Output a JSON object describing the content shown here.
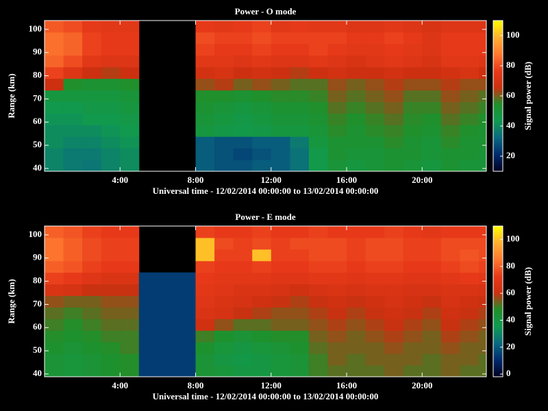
{
  "chart_data": [
    {
      "type": "heatmap",
      "title": "Power - O mode",
      "xlabel": "Universal time - 12/02/2014 00:00:00 to 13/02/2014 00:00:00",
      "ylabel": "Range (km)",
      "colorbar_label": "Signal power (dB)",
      "xlim": [
        0,
        23.4
      ],
      "xticks": [
        {
          "value": 4,
          "label": "4:00"
        },
        {
          "value": 8,
          "label": "8:00"
        },
        {
          "value": 12,
          "label": "12:00"
        },
        {
          "value": 16,
          "label": "16:00"
        },
        {
          "value": 20,
          "label": "20:00"
        }
      ],
      "ylim": [
        38.8,
        103.8
      ],
      "yticks": [
        40,
        50,
        60,
        70,
        80,
        90,
        100
      ],
      "clim": [
        10,
        110
      ],
      "cticks": [
        20,
        40,
        60,
        80,
        100
      ],
      "colormap": [
        "#000020",
        "#002a6e",
        "#0a6a80",
        "#109a50",
        "#20902a",
        "#cc3010",
        "#e83a1a",
        "#ff7a30",
        "#ffb030",
        "#ffff00"
      ],
      "xbins": [
        0,
        1,
        2,
        3,
        4,
        5,
        6,
        7,
        8,
        9,
        10,
        11,
        12,
        13,
        14,
        15,
        16,
        17,
        18,
        19,
        20,
        21,
        22,
        23,
        23.4
      ],
      "ybins": [
        38.8,
        43.8,
        48.8,
        53.8,
        58.8,
        63.8,
        68.8,
        73.8,
        78.8,
        83.8,
        88.8,
        93.8,
        98.8,
        103.8
      ],
      "values": [
        [
          38,
          36,
          35,
          38,
          40,
          null,
          null,
          null,
          30,
          28,
          28,
          30,
          30,
          34,
          45,
          50,
          48,
          50,
          52,
          50,
          48,
          52,
          50,
          50
        ],
        [
          38,
          36,
          36,
          38,
          40,
          null,
          null,
          null,
          30,
          28,
          26,
          28,
          30,
          34,
          45,
          52,
          50,
          50,
          52,
          52,
          50,
          52,
          52,
          50
        ],
        [
          40,
          38,
          38,
          40,
          42,
          null,
          null,
          null,
          30,
          28,
          28,
          30,
          30,
          36,
          48,
          52,
          52,
          52,
          55,
          52,
          50,
          55,
          52,
          52
        ],
        [
          40,
          40,
          40,
          42,
          44,
          null,
          null,
          null,
          48,
          46,
          45,
          46,
          48,
          48,
          50,
          55,
          52,
          55,
          56,
          54,
          52,
          56,
          54,
          52
        ],
        [
          42,
          42,
          44,
          44,
          46,
          null,
          null,
          null,
          50,
          48,
          46,
          48,
          50,
          50,
          52,
          56,
          54,
          56,
          58,
          55,
          54,
          58,
          56,
          54
        ],
        [
          44,
          44,
          46,
          46,
          48,
          null,
          null,
          null,
          52,
          50,
          48,
          50,
          52,
          52,
          54,
          58,
          56,
          58,
          60,
          56,
          56,
          60,
          58,
          56
        ],
        [
          48,
          48,
          48,
          48,
          50,
          null,
          null,
          null,
          54,
          54,
          52,
          54,
          55,
          55,
          56,
          60,
          58,
          60,
          62,
          58,
          58,
          62,
          60,
          58
        ],
        [
          66,
          54,
          52,
          52,
          54,
          null,
          null,
          null,
          62,
          64,
          60,
          62,
          60,
          58,
          58,
          62,
          60,
          62,
          64,
          62,
          62,
          64,
          62,
          62
        ],
        [
          78,
          72,
          66,
          64,
          66,
          null,
          null,
          null,
          68,
          70,
          66,
          68,
          66,
          64,
          66,
          68,
          66,
          66,
          68,
          66,
          66,
          68,
          70,
          66
        ],
        [
          84,
          80,
          74,
          72,
          72,
          null,
          null,
          null,
          74,
          74,
          72,
          74,
          72,
          72,
          74,
          72,
          70,
          72,
          74,
          72,
          70,
          74,
          74,
          72
        ],
        [
          86,
          84,
          78,
          76,
          76,
          null,
          null,
          null,
          78,
          76,
          76,
          78,
          76,
          76,
          78,
          76,
          74,
          74,
          76,
          74,
          72,
          76,
          76,
          76
        ],
        [
          86,
          84,
          78,
          76,
          76,
          null,
          null,
          null,
          80,
          78,
          78,
          80,
          78,
          78,
          78,
          78,
          76,
          76,
          78,
          76,
          72,
          76,
          76,
          76
        ],
        [
          82,
          80,
          76,
          74,
          74,
          null,
          null,
          null,
          76,
          74,
          76,
          78,
          74,
          76,
          74,
          74,
          72,
          72,
          74,
          72,
          70,
          72,
          72,
          72
        ]
      ]
    },
    {
      "type": "heatmap",
      "title": "Power - E mode",
      "xlabel": "Universal time - 12/02/2014 00:00:00 to 13/02/2014 00:00:00",
      "ylabel": "Range (km)",
      "colorbar_label": "Signal power (dB)",
      "xlim": [
        0,
        23.4
      ],
      "xticks": [
        {
          "value": 4,
          "label": "4:00"
        },
        {
          "value": 8,
          "label": "8:00"
        },
        {
          "value": 12,
          "label": "12:00"
        },
        {
          "value": 16,
          "label": "16:00"
        },
        {
          "value": 20,
          "label": "20:00"
        }
      ],
      "ylim": [
        38.8,
        103.8
      ],
      "yticks": [
        40,
        50,
        60,
        70,
        80,
        90,
        100
      ],
      "clim": [
        -2,
        110
      ],
      "cticks": [
        0,
        20,
        40,
        60,
        80,
        100
      ],
      "colormap": [
        "#000020",
        "#002a6e",
        "#0a6a80",
        "#109a50",
        "#20902a",
        "#cc3010",
        "#e83a1a",
        "#ff7a30",
        "#ffb030",
        "#ffff00"
      ],
      "xbins": [
        0,
        1,
        2,
        3,
        4,
        5,
        6,
        7,
        8,
        9,
        10,
        11,
        12,
        13,
        14,
        15,
        16,
        17,
        18,
        19,
        20,
        21,
        22,
        23,
        23.4
      ],
      "ybins": [
        38.8,
        43.8,
        48.8,
        53.8,
        58.8,
        63.8,
        68.8,
        73.8,
        78.8,
        83.8,
        88.8,
        93.8,
        98.8,
        103.8
      ],
      "values": [
        [
          44,
          42,
          44,
          46,
          48,
          14,
          14,
          14,
          44,
          42,
          40,
          40,
          42,
          44,
          50,
          52,
          52,
          52,
          54,
          52,
          52,
          54,
          52,
          52
        ],
        [
          44,
          42,
          44,
          46,
          48,
          14,
          14,
          14,
          44,
          40,
          38,
          40,
          42,
          44,
          50,
          54,
          52,
          54,
          54,
          54,
          52,
          54,
          54,
          52
        ],
        [
          46,
          44,
          46,
          48,
          50,
          14,
          14,
          14,
          46,
          42,
          40,
          42,
          44,
          46,
          52,
          54,
          54,
          54,
          56,
          54,
          54,
          56,
          54,
          54
        ],
        [
          48,
          46,
          48,
          50,
          50,
          14,
          14,
          14,
          50,
          46,
          44,
          46,
          48,
          48,
          54,
          56,
          54,
          56,
          58,
          56,
          54,
          58,
          56,
          54
        ],
        [
          50,
          48,
          50,
          52,
          52,
          14,
          14,
          14,
          62,
          56,
          52,
          52,
          54,
          54,
          56,
          58,
          56,
          58,
          60,
          58,
          56,
          60,
          58,
          56
        ],
        [
          52,
          50,
          52,
          54,
          54,
          14,
          14,
          14,
          66,
          64,
          60,
          58,
          56,
          56,
          58,
          60,
          58,
          60,
          62,
          60,
          58,
          62,
          60,
          58
        ],
        [
          56,
          54,
          54,
          56,
          56,
          14,
          14,
          14,
          68,
          66,
          64,
          62,
          60,
          58,
          60,
          62,
          60,
          62,
          64,
          62,
          60,
          64,
          62,
          60
        ],
        [
          66,
          64,
          60,
          60,
          60,
          14,
          14,
          14,
          70,
          68,
          66,
          66,
          64,
          62,
          64,
          66,
          64,
          66,
          66,
          64,
          64,
          66,
          66,
          64
        ],
        [
          74,
          72,
          68,
          66,
          66,
          14,
          14,
          14,
          72,
          70,
          70,
          70,
          68,
          68,
          70,
          70,
          68,
          70,
          70,
          68,
          68,
          70,
          72,
          70
        ],
        [
          80,
          78,
          74,
          72,
          72,
          null,
          null,
          null,
          74,
          72,
          72,
          74,
          72,
          72,
          74,
          74,
          72,
          74,
          74,
          72,
          72,
          74,
          76,
          74
        ],
        [
          84,
          80,
          76,
          74,
          74,
          null,
          null,
          null,
          100,
          74,
          74,
          100,
          74,
          74,
          76,
          76,
          74,
          76,
          76,
          74,
          74,
          76,
          78,
          76
        ],
        [
          84,
          80,
          76,
          74,
          74,
          null,
          null,
          null,
          100,
          76,
          74,
          76,
          74,
          76,
          76,
          76,
          74,
          76,
          76,
          74,
          74,
          76,
          76,
          76
        ],
        [
          80,
          78,
          74,
          72,
          72,
          null,
          null,
          null,
          74,
          72,
          72,
          74,
          72,
          72,
          74,
          72,
          72,
          72,
          74,
          72,
          70,
          72,
          72,
          72
        ]
      ]
    }
  ]
}
